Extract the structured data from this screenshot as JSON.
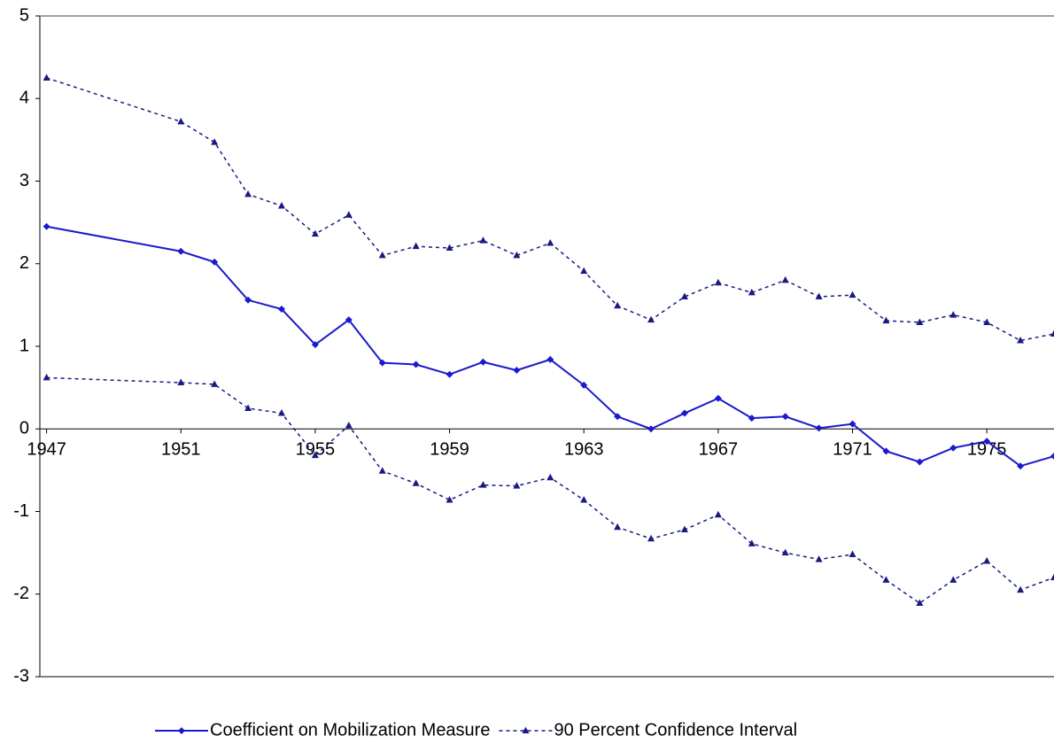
{
  "chart_data": {
    "type": "line",
    "x": [
      1947,
      1951,
      1952,
      1953,
      1954,
      1955,
      1956,
      1957,
      1958,
      1959,
      1960,
      1961,
      1962,
      1963,
      1964,
      1965,
      1966,
      1967,
      1968,
      1969,
      1970,
      1971,
      1972,
      1973,
      1974,
      1975,
      1976,
      1977
    ],
    "series": [
      {
        "name": "Coefficient on Mobilization Measure",
        "color": "#1a1acc",
        "marker": "diamond",
        "values": [
          2.45,
          2.15,
          2.02,
          1.56,
          1.45,
          1.02,
          1.32,
          0.8,
          0.78,
          0.66,
          0.81,
          0.71,
          0.84,
          0.53,
          0.15,
          0.0,
          0.19,
          0.37,
          0.13,
          0.15,
          0.01,
          0.06,
          -0.27,
          -0.4,
          -0.23,
          -0.15,
          -0.45,
          -0.33
        ]
      },
      {
        "name": "90 Percent Confidence Interval",
        "color": "#1a1a80",
        "marker": "triangle",
        "dash": true,
        "upper": [
          4.25,
          3.72,
          3.47,
          2.84,
          2.7,
          2.36,
          2.59,
          2.1,
          2.21,
          2.19,
          2.28,
          2.1,
          2.25,
          1.91,
          1.49,
          1.32,
          1.6,
          1.77,
          1.65,
          1.8,
          1.6,
          1.62,
          1.31,
          1.29,
          1.38,
          1.29,
          1.07,
          1.15
        ],
        "lower": [
          0.62,
          0.56,
          0.54,
          0.25,
          0.19,
          -0.32,
          0.04,
          -0.51,
          -0.66,
          -0.86,
          -0.68,
          -0.69,
          -0.59,
          -0.86,
          -1.19,
          -1.33,
          -1.22,
          -1.04,
          -1.39,
          -1.5,
          -1.58,
          -1.52,
          -1.83,
          -2.11,
          -1.83,
          -1.6,
          -1.95,
          -1.8
        ]
      }
    ],
    "xlim": [
      1946.8,
      1977
    ],
    "xticks": [
      1947,
      1951,
      1955,
      1959,
      1963,
      1967,
      1971,
      1975
    ],
    "ylim": [
      -3,
      5
    ],
    "yticks": [
      -3,
      -2,
      -1,
      0,
      1,
      2,
      3,
      4,
      5
    ]
  }
}
